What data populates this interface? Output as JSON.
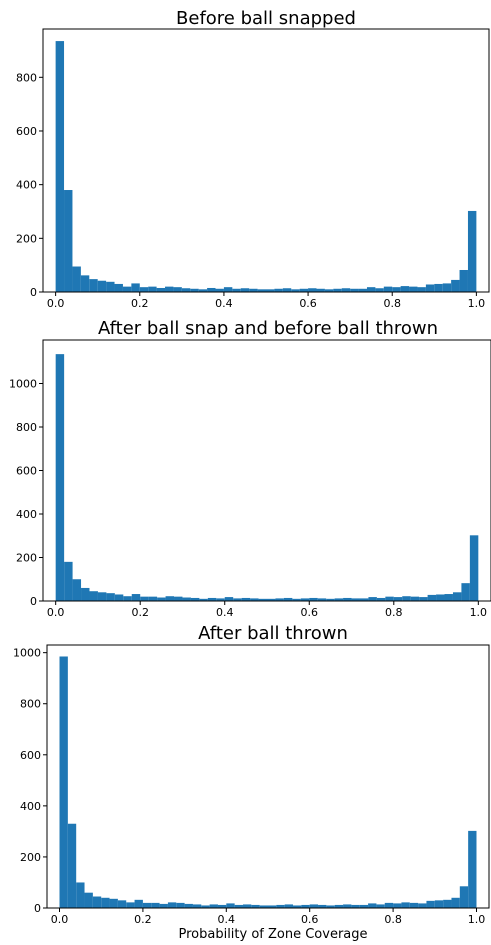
{
  "chart_data": [
    {
      "type": "bar",
      "title": "Before ball snapped",
      "xlabel": "",
      "ylabel": "",
      "bins": 50,
      "xlim": [
        -0.03,
        1.03
      ],
      "ylim": [
        0,
        980
      ],
      "xticks": [
        "0.0",
        "0.2",
        "0.4",
        "0.6",
        "0.8",
        "1.0"
      ],
      "yticks": [
        "0",
        "200",
        "400",
        "600",
        "800"
      ],
      "color": "#1f77b4",
      "values": [
        935,
        380,
        95,
        62,
        48,
        42,
        38,
        30,
        20,
        32,
        18,
        20,
        15,
        20,
        18,
        14,
        12,
        10,
        15,
        12,
        18,
        12,
        14,
        12,
        10,
        10,
        12,
        14,
        10,
        12,
        14,
        12,
        10,
        12,
        14,
        12,
        12,
        18,
        14,
        20,
        18,
        22,
        20,
        18,
        28,
        30,
        32,
        45,
        82,
        302
      ]
    },
    {
      "type": "bar",
      "title": "After ball snap and before ball thrown",
      "xlabel": "",
      "ylabel": "",
      "bins": 50,
      "xlim": [
        -0.03,
        1.03
      ],
      "ylim": [
        0,
        1200
      ],
      "xticks": [
        "0.0",
        "0.2",
        "0.4",
        "0.6",
        "0.8",
        "1.0"
      ],
      "yticks": [
        "0",
        "200",
        "400",
        "600",
        "800",
        "1000"
      ],
      "color": "#1f77b4",
      "values": [
        1135,
        180,
        100,
        60,
        45,
        40,
        36,
        30,
        22,
        32,
        20,
        20,
        16,
        22,
        20,
        16,
        14,
        10,
        14,
        12,
        18,
        12,
        14,
        12,
        10,
        10,
        12,
        14,
        10,
        12,
        14,
        12,
        10,
        12,
        14,
        12,
        12,
        18,
        14,
        20,
        18,
        22,
        20,
        18,
        28,
        30,
        32,
        40,
        82,
        302
      ]
    },
    {
      "type": "bar",
      "title": "After ball thrown",
      "xlabel": "Probability of Zone Coverage",
      "ylabel": "",
      "bins": 50,
      "xlim": [
        -0.03,
        1.03
      ],
      "ylim": [
        0,
        1030
      ],
      "xticks": [
        "0.0",
        "0.2",
        "0.4",
        "0.6",
        "0.8",
        "1.0"
      ],
      "yticks": [
        "0",
        "200",
        "400",
        "600",
        "800",
        "1000"
      ],
      "color": "#1f77b4",
      "values": [
        985,
        330,
        100,
        60,
        45,
        40,
        36,
        30,
        22,
        32,
        20,
        20,
        16,
        22,
        20,
        16,
        14,
        10,
        14,
        12,
        18,
        12,
        14,
        12,
        10,
        10,
        12,
        14,
        10,
        12,
        14,
        12,
        10,
        12,
        14,
        12,
        12,
        18,
        14,
        20,
        18,
        22,
        20,
        18,
        28,
        30,
        32,
        40,
        85,
        302
      ]
    }
  ]
}
